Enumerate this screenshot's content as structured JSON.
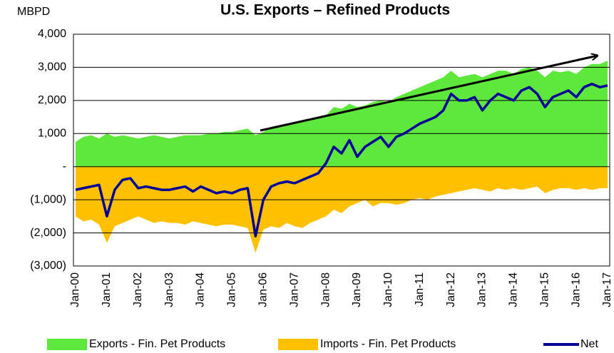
{
  "chart_data": {
    "type": "area",
    "title": "U.S. Exports – Refined Products",
    "y_label": "MBPD",
    "categories": [
      "Jan-00",
      null,
      null,
      null,
      "Jan-01",
      null,
      null,
      null,
      "Jan-02",
      null,
      null,
      null,
      "Jan-03",
      null,
      null,
      null,
      "Jan-04",
      null,
      null,
      null,
      "Jan-05",
      null,
      null,
      null,
      "Jan-06",
      null,
      null,
      null,
      "Jan-07",
      null,
      null,
      null,
      "Jan-08",
      null,
      null,
      null,
      "Jan-09",
      null,
      null,
      null,
      "Jan-10",
      null,
      null,
      null,
      "Jan-11",
      null,
      null,
      null,
      "Jan-12",
      null,
      null,
      null,
      "Jan-13",
      null,
      null,
      null,
      "Jan-14",
      null,
      null,
      null,
      "Jan-15",
      null,
      null,
      null,
      "Jan-16",
      null,
      null,
      null,
      "Jan-17"
    ],
    "series": [
      {
        "name": "Exports - Fin. Pet Products",
        "color": "#5ee83c",
        "kind": "area",
        "values": [
          750,
          900,
          950,
          850,
          1000,
          900,
          950,
          900,
          850,
          900,
          950,
          900,
          850,
          900,
          950,
          950,
          950,
          1000,
          1000,
          1050,
          1050,
          1100,
          1150,
          950,
          1050,
          1200,
          1250,
          1300,
          1300,
          1400,
          1450,
          1500,
          1550,
          1800,
          1750,
          1900,
          1800,
          1850,
          1950,
          2000,
          1950,
          2100,
          2200,
          2300,
          2400,
          2500,
          2600,
          2700,
          2900,
          2700,
          2750,
          2800,
          2700,
          2800,
          2900,
          2900,
          2800,
          2950,
          3000,
          2900,
          2700,
          2900,
          2850,
          2900,
          2800,
          3000,
          3100,
          3100,
          3200
        ]
      },
      {
        "name": "Imports - Fin. Pet Products",
        "color": "#ffc000",
        "kind": "area",
        "values": [
          -1500,
          -1650,
          -1600,
          -1750,
          -2300,
          -1800,
          -1700,
          -1600,
          -1500,
          -1600,
          -1700,
          -1650,
          -1700,
          -1700,
          -1750,
          -1650,
          -1700,
          -1750,
          -1800,
          -1750,
          -1750,
          -1800,
          -1850,
          -2600,
          -1900,
          -1800,
          -1850,
          -1700,
          -1800,
          -1850,
          -1700,
          -1600,
          -1500,
          -1300,
          -1400,
          -1200,
          -1100,
          -1000,
          -1200,
          -1100,
          -1100,
          -1150,
          -1100,
          -1000,
          -950,
          -1000,
          -900,
          -850,
          -800,
          -750,
          -700,
          -650,
          -700,
          -750,
          -650,
          -700,
          -650,
          -700,
          -650,
          -600,
          -800,
          -700,
          -650,
          -650,
          -700,
          -650,
          -700,
          -650,
          -650
        ]
      },
      {
        "name": "Net",
        "color": "#000099",
        "kind": "line",
        "values": [
          -700,
          -650,
          -600,
          -550,
          -1500,
          -700,
          -400,
          -350,
          -650,
          -600,
          -650,
          -700,
          -700,
          -650,
          -600,
          -750,
          -600,
          -700,
          -800,
          -750,
          -800,
          -700,
          -650,
          -2100,
          -1000,
          -600,
          -500,
          -450,
          -500,
          -400,
          -300,
          -200,
          100,
          600,
          400,
          800,
          300,
          600,
          750,
          900,
          600,
          900,
          1000,
          1150,
          1300,
          1400,
          1500,
          1700,
          2200,
          2000,
          2000,
          2100,
          1700,
          2000,
          2200,
          2100,
          2000,
          2300,
          2400,
          2200,
          1800,
          2100,
          2200,
          2300,
          2100,
          2400,
          2500,
          2400,
          2450
        ]
      }
    ],
    "ylim": [
      -3000,
      4000
    ],
    "yticks": [
      {
        "value": -3000,
        "label": "(3,000)"
      },
      {
        "value": -2000,
        "label": "(2,000)"
      },
      {
        "value": -1000,
        "label": "(1,000)"
      },
      {
        "value": 0,
        "label": "-"
      },
      {
        "value": 1000,
        "label": "1,000"
      },
      {
        "value": 2000,
        "label": "2,000"
      },
      {
        "value": 3000,
        "label": "3,000"
      },
      {
        "value": 4000,
        "label": "4,000"
      }
    ],
    "grid": true,
    "legend": "bottom"
  }
}
